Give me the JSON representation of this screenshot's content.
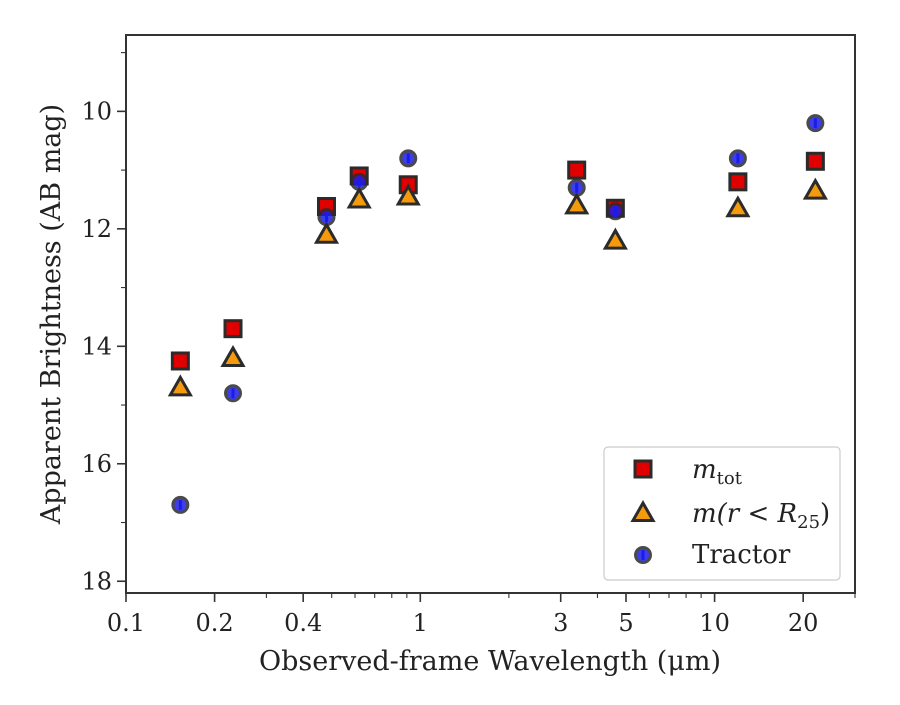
{
  "chart_data": {
    "type": "scatter",
    "title": "",
    "xlabel": "Observed-frame Wavelength (μm)",
    "ylabel": "Apparent Brightness (AB mag)",
    "xscale": "log",
    "xlim": [
      0.1,
      30
    ],
    "ylim": [
      18.2,
      8.7
    ],
    "y_inverted": true,
    "x_ticks": [
      "0.1",
      "0.2",
      "0.4",
      "1",
      "3",
      "5",
      "10",
      "20"
    ],
    "x_tick_values": [
      0.1,
      0.2,
      0.4,
      1,
      3,
      5,
      10,
      20
    ],
    "y_ticks": [
      "10",
      "12",
      "14",
      "16",
      "18"
    ],
    "y_tick_values": [
      10,
      12,
      14,
      16,
      18
    ],
    "grid": false,
    "legend": {
      "position": "bottom-right"
    },
    "colors": {
      "mtot": "#e00000",
      "mr25": "#f59a0c",
      "tractor": "#1c1ce8",
      "edge": "#2b2b2b"
    },
    "series": [
      {
        "name": "m_tot",
        "legend_main": "m",
        "legend_sub": "tot",
        "marker": "square",
        "x": [
          0.153,
          0.231,
          0.48,
          0.62,
          0.91,
          3.4,
          4.6,
          12,
          22
        ],
        "y": [
          14.25,
          13.7,
          11.62,
          11.1,
          11.25,
          11.0,
          11.65,
          11.2,
          10.85
        ]
      },
      {
        "name": "m(r < R_25)",
        "legend_main": "m(r < R",
        "legend_sub": "25",
        "legend_tail": ")",
        "marker": "triangle",
        "x": [
          0.153,
          0.231,
          0.48,
          0.62,
          0.91,
          3.4,
          4.6,
          12,
          22
        ],
        "y": [
          14.7,
          14.2,
          12.1,
          11.5,
          11.45,
          11.6,
          12.2,
          11.65,
          11.35
        ]
      },
      {
        "name": "Tractor",
        "legend_main": "Tractor",
        "marker": "circle",
        "x": [
          0.153,
          0.231,
          0.48,
          0.62,
          0.91,
          3.4,
          4.6,
          12,
          22
        ],
        "y": [
          16.7,
          14.8,
          11.8,
          11.2,
          10.8,
          11.3,
          11.7,
          10.8,
          10.2
        ]
      }
    ]
  }
}
